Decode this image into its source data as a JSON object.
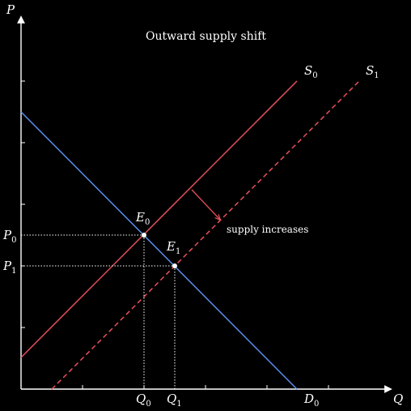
{
  "title": "Outward supply shift",
  "axes": {
    "x_label": "Q",
    "y_label": "P",
    "color": "#ffffff"
  },
  "curves": {
    "supply_initial": {
      "letter": "S",
      "sub": "0",
      "color": "#e8505b",
      "style": "solid"
    },
    "supply_shifted": {
      "letter": "S",
      "sub": "1",
      "color": "#e8505b",
      "style": "dashed"
    },
    "demand": {
      "letter": "D",
      "sub": "0",
      "color": "#5b8ff0",
      "style": "solid"
    }
  },
  "equilibria": {
    "initial": {
      "letter": "E",
      "sub": "0",
      "price": {
        "letter": "P",
        "sub": "0"
      },
      "quantity": {
        "letter": "Q",
        "sub": "0"
      }
    },
    "new": {
      "letter": "E",
      "sub": "1",
      "price": {
        "letter": "P",
        "sub": "1"
      },
      "quantity": {
        "letter": "Q",
        "sub": "1"
      }
    }
  },
  "annotation": {
    "text": "supply increases",
    "arrow_color": "#e8505b"
  }
}
